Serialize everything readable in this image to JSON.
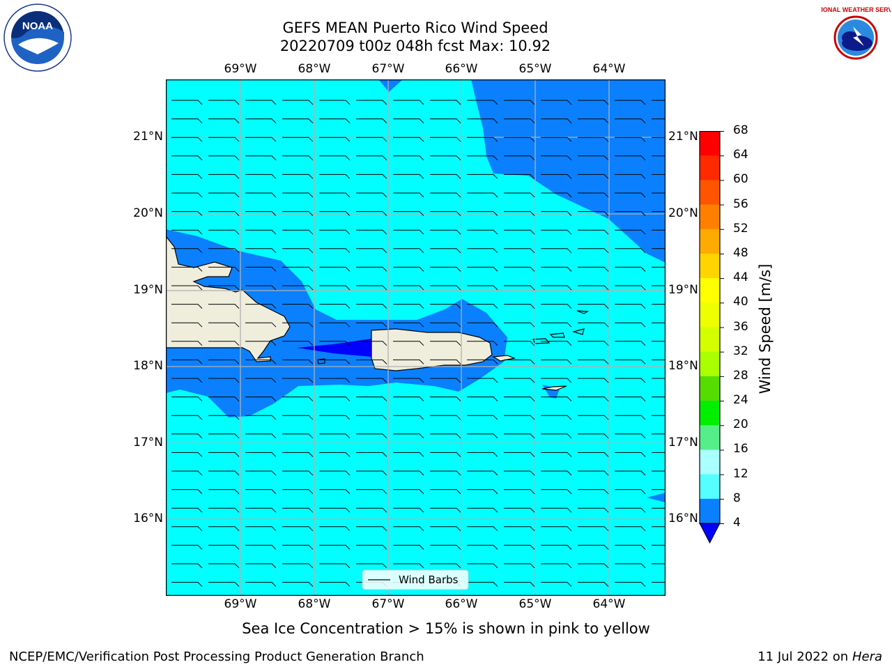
{
  "title": {
    "line1": "GEFS MEAN Puerto Rico Wind Speed",
    "line2": "20220709 t00z 048h fcst   Max: 10.92"
  },
  "axes": {
    "lon_ticks": [
      "69°W",
      "68°W",
      "67°W",
      "66°W",
      "65°W",
      "64°W"
    ],
    "lat_ticks": [
      "21°N",
      "20°N",
      "19°N",
      "18°N",
      "17°N",
      "16°N"
    ]
  },
  "colorbar": {
    "label": "Wind Speed [m/s]",
    "ticks": [
      "68",
      "64",
      "60",
      "56",
      "52",
      "48",
      "44",
      "40",
      "36",
      "32",
      "28",
      "24",
      "20",
      "16",
      "12",
      "8",
      "4"
    ],
    "colors": [
      "#ff0000",
      "#ff2a00",
      "#ff5500",
      "#ff8000",
      "#ffaa00",
      "#ffd400",
      "#ffff00",
      "#eeff00",
      "#d4ff00",
      "#aaff00",
      "#55dd00",
      "#00ee00",
      "#55ee88",
      "#aaffff",
      "#55ffff",
      "#00ffff",
      "#0a80ff"
    ],
    "extend_color": "#0000ff"
  },
  "legend": {
    "label": "Wind Barbs"
  },
  "caption": "Sea Ice Concentration > 15% is shown in pink to yellow",
  "footer": {
    "left": "NCEP/EMC/Verification Post Processing Product Generation Branch",
    "right_prefix": "11 Jul 2022 on ",
    "right_host": "Hera"
  },
  "logos": {
    "noaa": "NOAA",
    "nws": "NATIONAL WEATHER SERVICE"
  },
  "map_colors": {
    "speed_8_12": "#00ffff",
    "speed_4_8": "#0a80ff",
    "speed_below_4": "#0000ff",
    "land": "#efeddc",
    "grid": "#b0b0b0"
  }
}
